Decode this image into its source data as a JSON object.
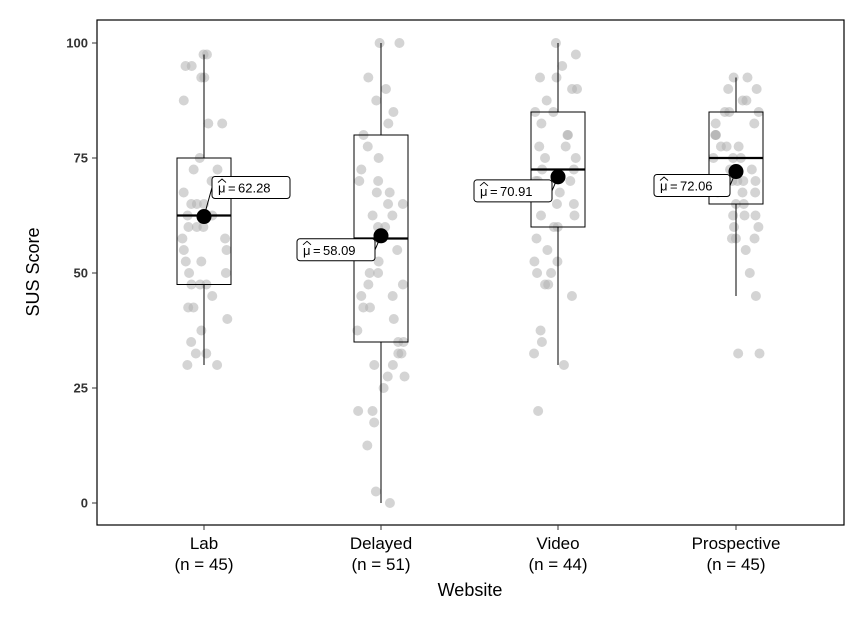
{
  "chart_data": {
    "type": "boxplot",
    "xlabel": "Website",
    "ylabel": "SUS Score",
    "ylim": [
      0,
      100
    ],
    "yticks": [
      "0",
      "25",
      "50",
      "75",
      "100"
    ],
    "grid": false,
    "colors": {
      "point": "#b0b0b0",
      "mean": "#000000",
      "box": "#000000",
      "background": "#ffffff"
    },
    "categories": [
      {
        "name": "Lab",
        "n_label": "(n = 45)",
        "whisker_low": 30,
        "q1": 47.5,
        "median": 62.5,
        "q3": 75,
        "whisker_high": 97.5,
        "mean": 62.28,
        "mean_label": "62.28",
        "mu_symbol": "μ",
        "points": [
          97.5,
          97.5,
          95,
          95,
          92.5,
          92.5,
          87.5,
          82.5,
          82.5,
          75,
          72.5,
          72.5,
          70,
          67.5,
          65,
          65,
          62.5,
          62.5,
          62.5,
          60,
          60,
          57.5,
          57.5,
          55,
          52.5,
          52.5,
          50,
          50,
          47.5,
          47.5,
          45,
          42.5,
          42.5,
          40,
          37.5,
          35,
          32.5,
          32.5,
          30,
          30,
          65,
          60,
          55,
          70,
          47.5
        ]
      },
      {
        "name": "Delayed",
        "n_label": "(n = 51)",
        "whisker_low": 0,
        "q1": 35,
        "median": 57.5,
        "q3": 80,
        "whisker_high": 100,
        "mean": 58.09,
        "mean_label": "58.09",
        "mu_symbol": "μ",
        "points": [
          100,
          100,
          92.5,
          90,
          87.5,
          85,
          82.5,
          80,
          77.5,
          75,
          72.5,
          70,
          67.5,
          67.5,
          65,
          65,
          62.5,
          60,
          57.5,
          57.5,
          55,
          52.5,
          50,
          50,
          47.5,
          45,
          42.5,
          42.5,
          40,
          35,
          35,
          32.5,
          32.5,
          30,
          27.5,
          25,
          20,
          20,
          17.5,
          12.5,
          2.5,
          0,
          62.5,
          55,
          47.5,
          37.5,
          30,
          60,
          70,
          45,
          27.5
        ]
      },
      {
        "name": "Video",
        "n_label": "(n = 44)",
        "whisker_low": 30,
        "q1": 60,
        "median": 72.5,
        "q3": 85,
        "whisker_high": 100,
        "mean": 70.91,
        "mean_label": "70.91",
        "mu_symbol": "μ",
        "points": [
          100,
          97.5,
          95,
          92.5,
          92.5,
          90,
          90,
          87.5,
          85,
          82.5,
          80,
          80,
          77.5,
          75,
          75,
          72.5,
          72.5,
          70,
          70,
          67.5,
          67.5,
          65,
          62.5,
          62.5,
          60,
          57.5,
          55,
          52.5,
          50,
          50,
          47.5,
          47.5,
          45,
          37.5,
          35,
          32.5,
          30,
          20,
          85,
          77.5,
          65,
          60,
          52.5,
          70
        ]
      },
      {
        "name": "Prospective",
        "n_label": "(n = 45)",
        "whisker_low": 45,
        "q1": 65,
        "median": 75,
        "q3": 85,
        "whisker_high": 92.5,
        "mean": 72.06,
        "mean_label": "72.06",
        "mu_symbol": "μ",
        "points": [
          92.5,
          92.5,
          90,
          90,
          87.5,
          87.5,
          85,
          85,
          82.5,
          82.5,
          80,
          80,
          77.5,
          77.5,
          75,
          75,
          75,
          72.5,
          72.5,
          70,
          70,
          70,
          67.5,
          67.5,
          65,
          65,
          62.5,
          62.5,
          60,
          60,
          57.5,
          57.5,
          57.5,
          55,
          50,
          45,
          32.5,
          32.5,
          67.5,
          72.5,
          62.5,
          80,
          85,
          77.5,
          70
        ]
      }
    ]
  }
}
